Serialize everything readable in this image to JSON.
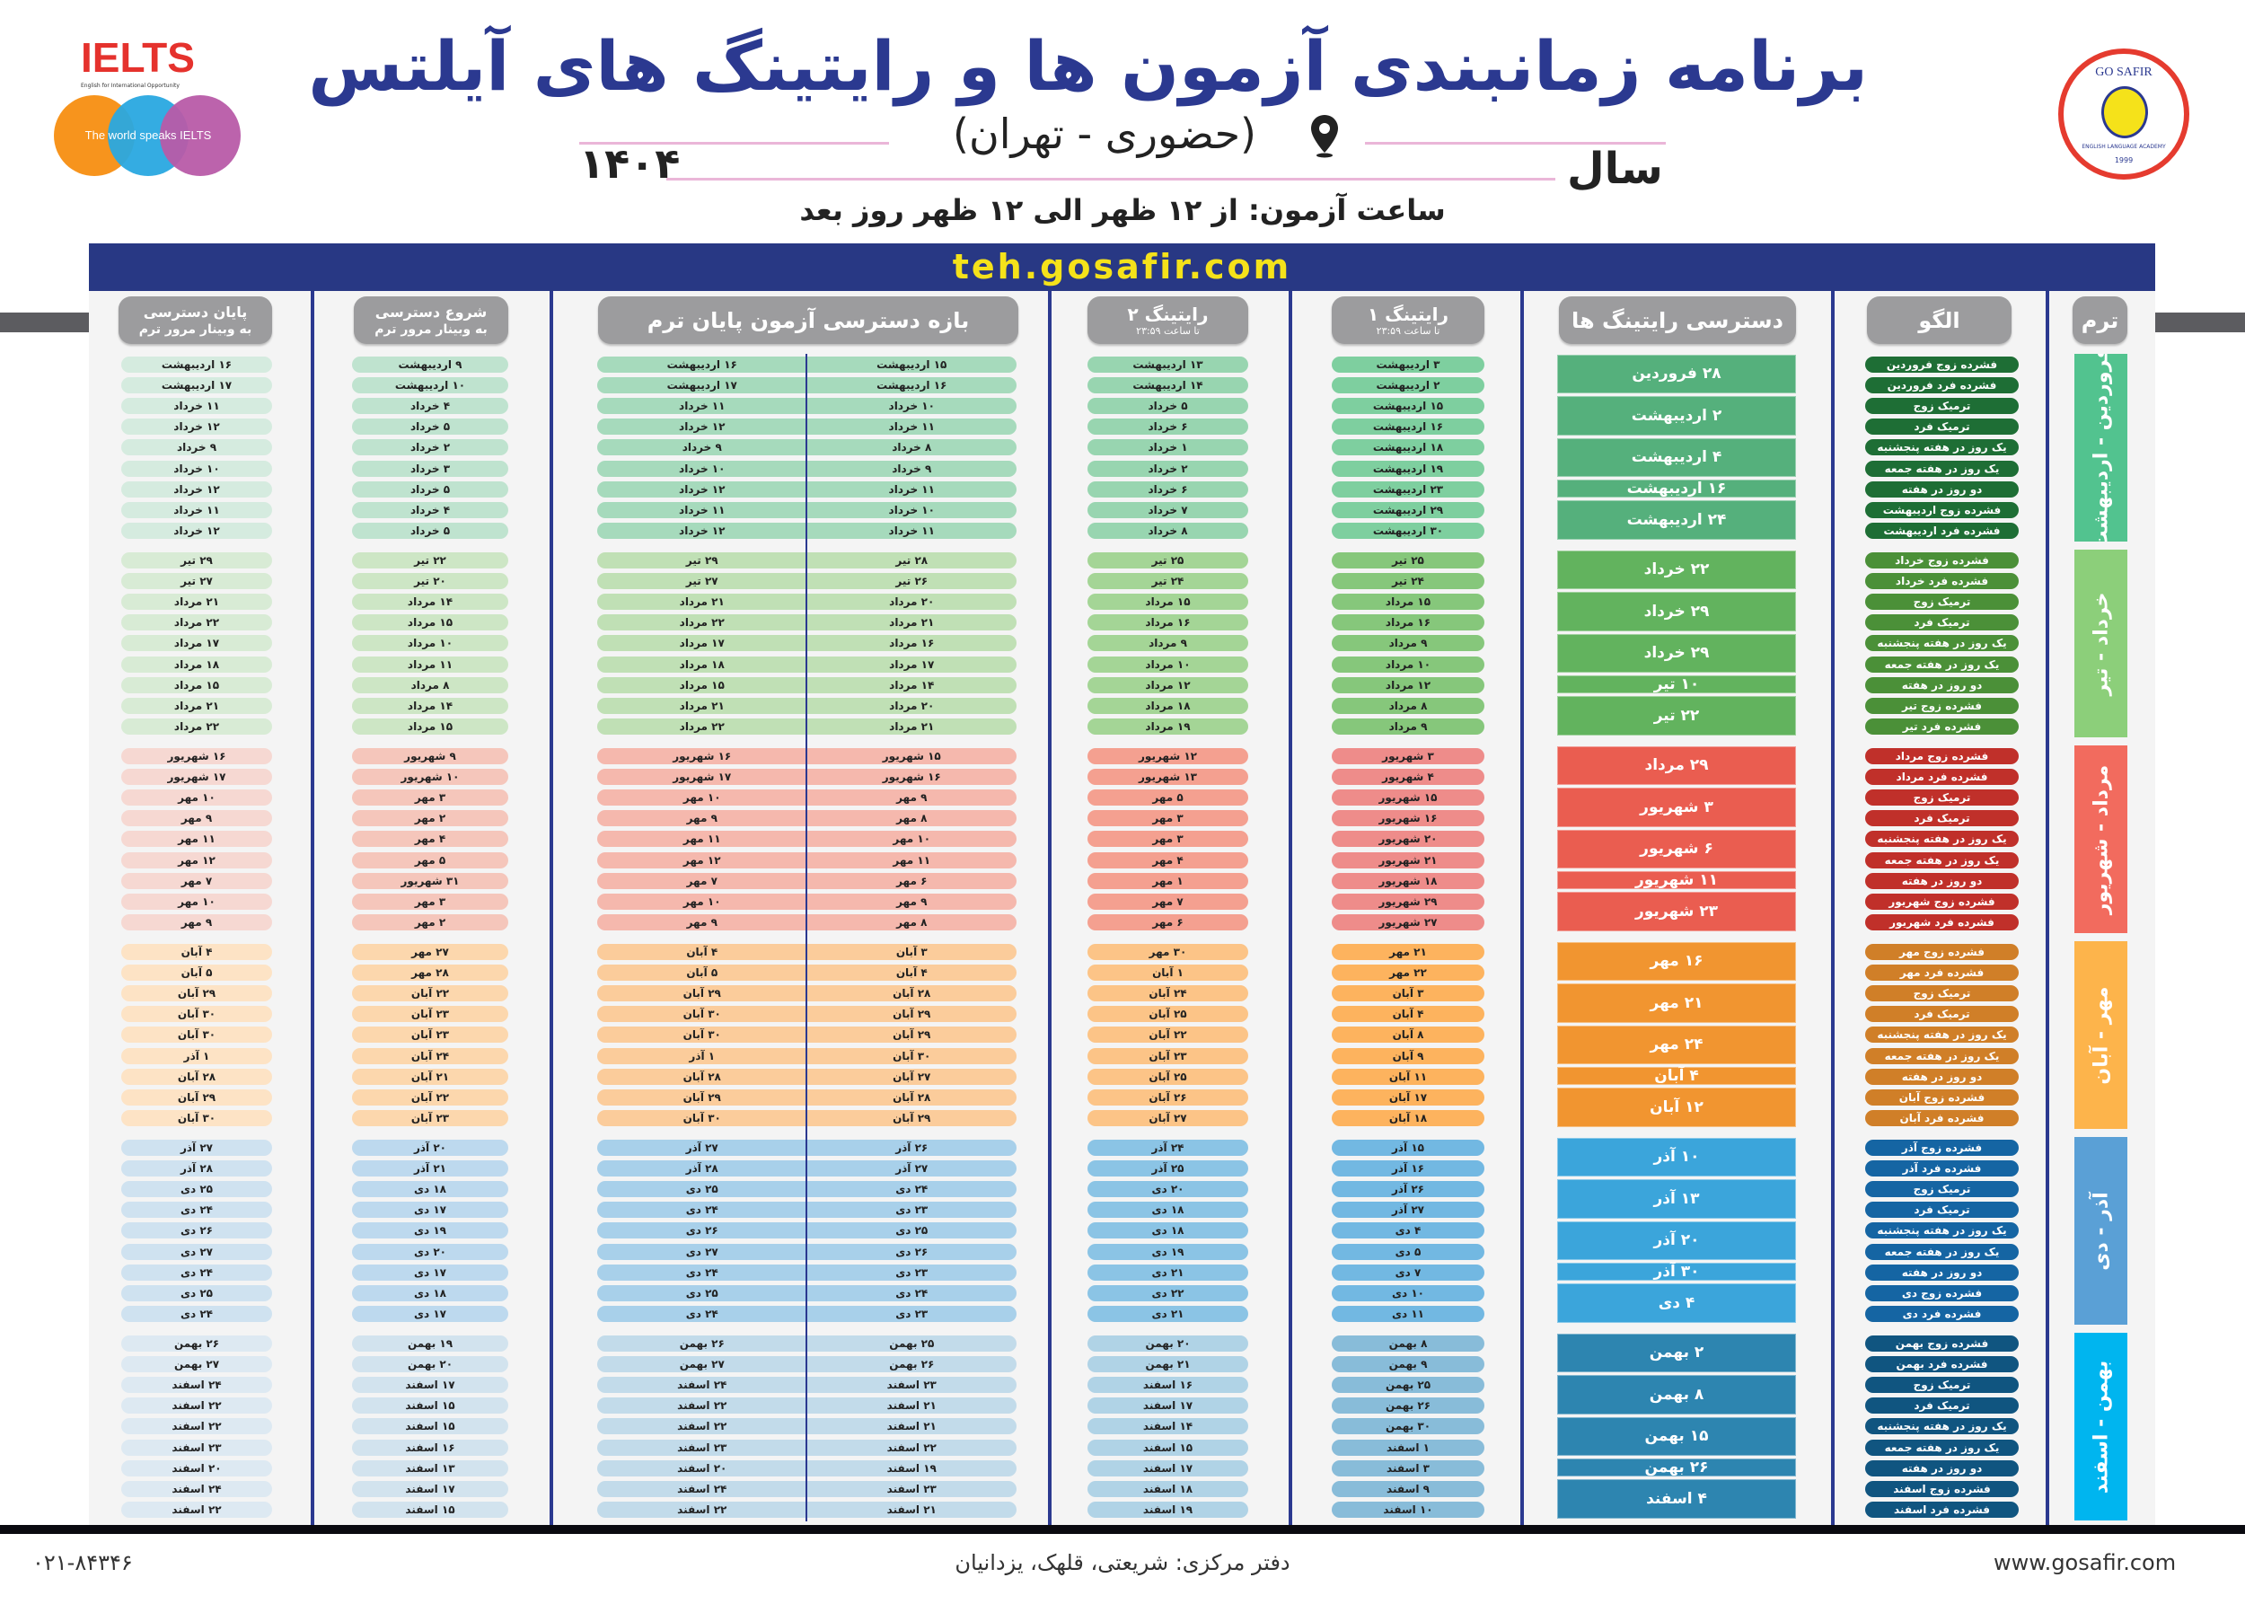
{
  "header": {
    "title": "برنامه زمانبندی آزمون ها و رایتینگ های آیلتس",
    "subtitle": "(حضوری - تهران)",
    "year_label": "سال",
    "year": "۱۴۰۴",
    "exam_time": "ساعت آزمون: از ۱۲ ظهر الی ۱۲ ظهر روز بعد",
    "website_band": "teh.gosafir.com",
    "ielts_logo": {
      "name": "IELTS",
      "tagline": "English for International Opportunity",
      "slogan": "The world speaks IELTS"
    },
    "gosafir_logo": {
      "name": "GO SAFIR",
      "tagline": "ENGLISH LANGUAGE ACADEMY",
      "year": "1999"
    }
  },
  "columns": {
    "end_access": {
      "line1": "پایان دسترسی",
      "line2": "به وبینار مرور ترم"
    },
    "start_access": {
      "line1": "شروع دسترسی",
      "line2": "به وبینار مرور ترم"
    },
    "exam_window": {
      "line1": "بازه دسترسی آزمون پایان ترم"
    },
    "writing2": {
      "line1": "رایتینگ ۲",
      "line2": "تا ساعت ۲۳:۵۹"
    },
    "writing1": {
      "line1": "رایتینگ ۱",
      "line2": "تا ساعت ۲۳:۵۹"
    },
    "writing_access": {
      "line1": "دسترسی رایتینگ ها"
    },
    "pattern": {
      "line1": "الگو"
    },
    "term": {
      "line1": "ترم"
    }
  },
  "colors": {
    "navy": "#2b3990",
    "band_text": "#f5e21a",
    "palettes": [
      [
        "#d5ebdf",
        "#bfe3cf",
        "#a6dabc",
        "#98d5b0",
        "#7ecf9f",
        "#55b07c",
        "#1e6e35",
        "#52c38f"
      ],
      [
        "#d8ebd5",
        "#cde6c5",
        "#c0e0b5",
        "#a4d596",
        "#86c77b",
        "#62b35e",
        "#4b9038",
        "#8ccf7a"
      ],
      [
        "#f6d8d2",
        "#f5c6bb",
        "#f5b8ad",
        "#f4a090",
        "#ee8c8a",
        "#ea5d50",
        "#c0302a",
        "#f26b5e"
      ],
      [
        "#fde3c5",
        "#fcd7ad",
        "#fbcc9b",
        "#fcc487",
        "#fdb35e",
        "#f19530",
        "#d07f28",
        "#fdb44b"
      ],
      [
        "#cfe2f0",
        "#bdd9ee",
        "#a8d0ea",
        "#8bc4e5",
        "#72b8e2",
        "#3ba5db",
        "#1565a3",
        "#5aa0d6"
      ],
      [
        "#dde9f2",
        "#d2e3ee",
        "#c2dbea",
        "#b0d3e6",
        "#88bcd9",
        "#2d85b0",
        "#105580",
        "#00b5ef"
      ]
    ]
  },
  "terms": [
    {
      "label": "فروردین - اردیبهشت",
      "writing_access": [
        "۲۸ فروردین",
        "۲ اردیبهشت",
        "۴ اردیبهشت",
        "۱۶ اردیبهشت",
        "۲۴ اردیبهشت"
      ],
      "end_access": [
        "۱۶ اردیبهشت",
        "۱۷ اردیبهشت",
        "۱۱ خرداد",
        "۱۲ خرداد",
        "۹ خرداد",
        "۱۰ خرداد",
        "۱۲ خرداد",
        "۱۱ خرداد",
        "۱۲ خرداد"
      ],
      "start_access": [
        "۹ اردیبهشت",
        "۱۰ اردیبهشت",
        "۴ خرداد",
        "۵ خرداد",
        "۲ خرداد",
        "۳ خرداد",
        "۵ خرداد",
        "۴ خرداد",
        "۵ خرداد"
      ],
      "exam_to": [
        "۱۶ اردیبهشت",
        "۱۷ اردیبهشت",
        "۱۱ خرداد",
        "۱۲ خرداد",
        "۹ خرداد",
        "۱۰ خرداد",
        "۱۲ خرداد",
        "۱۱ خرداد",
        "۱۲ خرداد"
      ],
      "exam_from": [
        "۱۵ اردیبهشت",
        "۱۶ اردیبهشت",
        "۱۰ خرداد",
        "۱۱ خرداد",
        "۸ خرداد",
        "۹ خرداد",
        "۱۱ خرداد",
        "۱۰ خرداد",
        "۱۱ خرداد"
      ],
      "writing2": [
        "۱۳ اردیبهشت",
        "۱۴ اردیبهشت",
        "۵ خرداد",
        "۶ خرداد",
        "۱ خرداد",
        "۲ خرداد",
        "۶ خرداد",
        "۷ خرداد",
        "۸ خرداد"
      ],
      "writing1": [
        "۳ اردیبهشت",
        "۲ اردیبهشت",
        "۱۵ اردیبهشت",
        "۱۶ اردیبهشت",
        "۱۸ اردیبهشت",
        "۱۹ اردیبهشت",
        "۲۳ اردیبهشت",
        "۲۹ اردیبهشت",
        "۳۰ اردیبهشت"
      ],
      "pattern": [
        "فشرده زوج فروردین",
        "فشرده فرد فروردین",
        "ترمیک زوج",
        "ترمیک فرد",
        "یک روز در هفته پنجشنبه",
        "یک روز در هفته جمعه",
        "دو روز در هفته",
        "فشرده زوج اردیبهشت",
        "فشرده فرد اردیبهشت"
      ]
    },
    {
      "label": "خرداد - تیر",
      "writing_access": [
        "۲۲ خرداد",
        "۲۹ خرداد",
        "۲۹ خرداد",
        "۱۰ تیر",
        "۲۲ تیر"
      ],
      "end_access": [
        "۲۹ تیر",
        "۲۷ تیر",
        "۲۱ مرداد",
        "۲۲ مرداد",
        "۱۷ مرداد",
        "۱۸ مرداد",
        "۱۵ مرداد",
        "۲۱ مرداد",
        "۲۲ مرداد"
      ],
      "start_access": [
        "۲۲ تیر",
        "۲۰ تیر",
        "۱۴ مرداد",
        "۱۵ مرداد",
        "۱۰ مرداد",
        "۱۱ مرداد",
        "۸ مرداد",
        "۱۴ مرداد",
        "۱۵ مرداد"
      ],
      "exam_to": [
        "۲۹ تیر",
        "۲۷ تیر",
        "۲۱ مرداد",
        "۲۲ مرداد",
        "۱۷ مرداد",
        "۱۸ مرداد",
        "۱۵ مرداد",
        "۲۱ مرداد",
        "۲۲ مرداد"
      ],
      "exam_from": [
        "۲۸ تیر",
        "۲۶ تیر",
        "۲۰ مرداد",
        "۲۱ مرداد",
        "۱۶ مرداد",
        "۱۷ مرداد",
        "۱۴ مرداد",
        "۲۰ مرداد",
        "۲۱ مرداد"
      ],
      "writing2": [
        "۲۵ تیر",
        "۲۴ تیر",
        "۱۵ مرداد",
        "۱۶ مرداد",
        "۹ مرداد",
        "۱۰ مرداد",
        "۱۲ مرداد",
        "۱۸ مرداد",
        "۱۹ مرداد"
      ],
      "writing1": [
        "۲۵ تیر",
        "۲۴ تیر",
        "۱۵ مرداد",
        "۱۶ مرداد",
        "۹ مرداد",
        "۱۰ مرداد",
        "۱۲ مرداد",
        "۸ مرداد",
        "۹ مرداد"
      ],
      "pattern": [
        "فشرده زوج خرداد",
        "فشرده فرد خرداد",
        "ترمیک زوج",
        "ترمیک فرد",
        "یک روز در هفته پنجشنبه",
        "یک روز در هفته جمعه",
        "دو روز در هفته",
        "فشرده زوج تیر",
        "فشرده فرد تیر"
      ]
    },
    {
      "label": "مرداد - شهریور",
      "writing_access": [
        "۲۹ مرداد",
        "۳ شهریور",
        "۶ شهریور",
        "۱۱ شهریور",
        "۲۳ شهریور"
      ],
      "end_access": [
        "۱۶ شهریور",
        "۱۷ شهریور",
        "۱۰ مهر",
        "۹ مهر",
        "۱۱ مهر",
        "۱۲ مهر",
        "۷ مهر",
        "۱۰ مهر",
        "۹ مهر"
      ],
      "start_access": [
        "۹ شهریور",
        "۱۰ شهریور",
        "۳ مهر",
        "۲ مهر",
        "۴ مهر",
        "۵ مهر",
        "۳۱ شهریور",
        "۳ مهر",
        "۲ مهر"
      ],
      "exam_to": [
        "۱۶ شهریور",
        "۱۷ شهریور",
        "۱۰ مهر",
        "۹ مهر",
        "۱۱ مهر",
        "۱۲ مهر",
        "۷ مهر",
        "۱۰ مهر",
        "۹ مهر"
      ],
      "exam_from": [
        "۱۵ شهریور",
        "۱۶ شهریور",
        "۹ مهر",
        "۸ مهر",
        "۱۰ مهر",
        "۱۱ مهر",
        "۶ مهر",
        "۹ مهر",
        "۸ مهر"
      ],
      "writing2": [
        "۱۲ شهریور",
        "۱۳ شهریور",
        "۵ مهر",
        "۳ مهر",
        "۳ مهر",
        "۴ مهر",
        "۱ مهر",
        "۷ مهر",
        "۶ مهر"
      ],
      "writing1": [
        "۳ شهریور",
        "۴ شهریور",
        "۱۵ شهریور",
        "۱۶ شهریور",
        "۲۰ شهریور",
        "۲۱ شهریور",
        "۱۸ شهریور",
        "۲۹ شهریور",
        "۲۷ شهریور"
      ],
      "pattern": [
        "فشرده زوج مرداد",
        "فشرده فرد مرداد",
        "ترمیک زوج",
        "ترمیک فرد",
        "یک روز در هفته پنجشنبه",
        "یک روز در هفته جمعه",
        "دو روز در هفته",
        "فشرده زوج شهریور",
        "فشرده فرد شهریور"
      ]
    },
    {
      "label": "مهر - آبان",
      "writing_access": [
        "۱۶ مهر",
        "۲۱ مهر",
        "۲۴ مهر",
        "۴ آبان",
        "۱۲ آبان"
      ],
      "end_access": [
        "۴ آبان",
        "۵ آبان",
        "۲۹ آبان",
        "۳۰ آبان",
        "۳۰ آبان",
        "۱ آذر",
        "۲۸ آبان",
        "۲۹ آبان",
        "۳۰ آبان"
      ],
      "start_access": [
        "۲۷ مهر",
        "۲۸ مهر",
        "۲۲ آبان",
        "۲۳ آبان",
        "۲۳ آبان",
        "۲۴ آبان",
        "۲۱ آبان",
        "۲۲ آبان",
        "۲۳ آبان"
      ],
      "exam_to": [
        "۴ آبان",
        "۵ آبان",
        "۲۹ آبان",
        "۳۰ آبان",
        "۳۰ آبان",
        "۱ آذر",
        "۲۸ آبان",
        "۲۹ آبان",
        "۳۰ آبان"
      ],
      "exam_from": [
        "۳ آبان",
        "۴ آبان",
        "۲۸ آبان",
        "۲۹ آبان",
        "۲۹ آبان",
        "۳۰ آبان",
        "۲۷ آبان",
        "۲۸ آبان",
        "۲۹ آبان"
      ],
      "writing2": [
        "۳۰ مهر",
        "۱ آبان",
        "۲۴ آبان",
        "۲۵ آبان",
        "۲۲ آبان",
        "۲۳ آبان",
        "۲۵ آبان",
        "۲۶ آبان",
        "۲۷ آبان"
      ],
      "writing1": [
        "۲۱ مهر",
        "۲۲ مهر",
        "۳ آبان",
        "۴ آبان",
        "۸ آبان",
        "۹ آبان",
        "۱۱ آبان",
        "۱۷ آبان",
        "۱۸ آبان"
      ],
      "pattern": [
        "فشرده زوج مهر",
        "فشرده فرد مهر",
        "ترمیک زوج",
        "ترمیک فرد",
        "یک روز در هفته پنجشنبه",
        "یک روز در هفته جمعه",
        "دو روز در هفته",
        "فشرده زوج آبان",
        "فشرده فرد آبان"
      ]
    },
    {
      "label": "آذر - دی",
      "writing_access": [
        "۱۰ آذر",
        "۱۳ آذر",
        "۲۰ آذر",
        "۳۰ آذر",
        "۴ دی"
      ],
      "end_access": [
        "۲۷ آذر",
        "۲۸ آذر",
        "۲۵ دی",
        "۲۴ دی",
        "۲۶ دی",
        "۲۷ دی",
        "۲۴ دی",
        "۲۵ دی",
        "۲۴ دی"
      ],
      "start_access": [
        "۲۰ آذر",
        "۲۱ آذر",
        "۱۸ دی",
        "۱۷ دی",
        "۱۹ دی",
        "۲۰ دی",
        "۱۷ دی",
        "۱۸ دی",
        "۱۷ دی"
      ],
      "exam_to": [
        "۲۷ آذر",
        "۲۸ آذر",
        "۲۵ دی",
        "۲۴ دی",
        "۲۶ دی",
        "۲۷ دی",
        "۲۴ دی",
        "۲۵ دی",
        "۲۴ دی"
      ],
      "exam_from": [
        "۲۶ آذر",
        "۲۷ آذر",
        "۲۴ دی",
        "۲۳ دی",
        "۲۵ دی",
        "۲۶ دی",
        "۲۳ دی",
        "۲۴ دی",
        "۲۳ دی"
      ],
      "writing2": [
        "۲۴ آذر",
        "۲۵ آذر",
        "۲۰ دی",
        "۱۸ دی",
        "۱۸ دی",
        "۱۹ دی",
        "۲۱ دی",
        "۲۲ دی",
        "۲۱ دی"
      ],
      "writing1": [
        "۱۵ آذر",
        "۱۶ آذر",
        "۲۶ آذر",
        "۲۷ آذر",
        "۴ دی",
        "۵ دی",
        "۷ دی",
        "۱۰ دی",
        "۱۱ دی"
      ],
      "pattern": [
        "فشرده زوج آذر",
        "فشرده فرد آذر",
        "ترمیک زوج",
        "ترمیک فرد",
        "یک روز در هفته پنجشنبه",
        "یک روز در هفته جمعه",
        "دو روز در هفته",
        "فشرده زوج دی",
        "فشرده فرد دی"
      ]
    },
    {
      "label": "بهمن - اسفند",
      "writing_access": [
        "۲ بهمن",
        "۸ بهمن",
        "۱۵ بهمن",
        "۲۶ بهمن",
        "۴ اسفند"
      ],
      "end_access": [
        "۲۶ بهمن",
        "۲۷ بهمن",
        "۲۴ اسفند",
        "۲۲ اسفند",
        "۲۲ اسفند",
        "۲۳ اسفند",
        "۲۰ اسفند",
        "۲۴ اسفند",
        "۲۲ اسفند"
      ],
      "start_access": [
        "۱۹ بهمن",
        "۲۰ بهمن",
        "۱۷ اسفند",
        "۱۵ اسفند",
        "۱۵ اسفند",
        "۱۶ اسفند",
        "۱۳ اسفند",
        "۱۷ اسفند",
        "۱۵ اسفند"
      ],
      "exam_to": [
        "۲۶ بهمن",
        "۲۷ بهمن",
        "۲۴ اسفند",
        "۲۲ اسفند",
        "۲۲ اسفند",
        "۲۳ اسفند",
        "۲۰ اسفند",
        "۲۴ اسفند",
        "۲۲ اسفند"
      ],
      "exam_from": [
        "۲۵ بهمن",
        "۲۶ بهمن",
        "۲۳ اسفند",
        "۲۱ اسفند",
        "۲۱ اسفند",
        "۲۲ اسفند",
        "۱۹ اسفند",
        "۲۳ اسفند",
        "۲۱ اسفند"
      ],
      "writing2": [
        "۲۰ بهمن",
        "۲۱ بهمن",
        "۱۶ اسفند",
        "۱۷ اسفند",
        "۱۴ اسفند",
        "۱۵ اسفند",
        "۱۷ اسفند",
        "۱۸ اسفند",
        "۱۹ اسفند"
      ],
      "writing1": [
        "۸ بهمن",
        "۹ بهمن",
        "۲۵ بهمن",
        "۲۶ بهمن",
        "۳۰ بهمن",
        "۱ اسفند",
        "۳ اسفند",
        "۹ اسفند",
        "۱۰ اسفند"
      ],
      "pattern": [
        "فشرده زوج بهمن",
        "فشرده فرد بهمن",
        "ترمیک زوج",
        "ترمیک فرد",
        "یک روز در هفته پنجشنبه",
        "یک روز در هفته جمعه",
        "دو روز در هفته",
        "فشرده زوج اسفند",
        "فشرده فرد اسفند"
      ]
    }
  ],
  "footer": {
    "phone": "۰۲۱-۸۴۳۴۶",
    "address": "دفتر مرکزی: شریعتی، قلهک، یزدانیان",
    "website": "www.gosafir.com"
  }
}
